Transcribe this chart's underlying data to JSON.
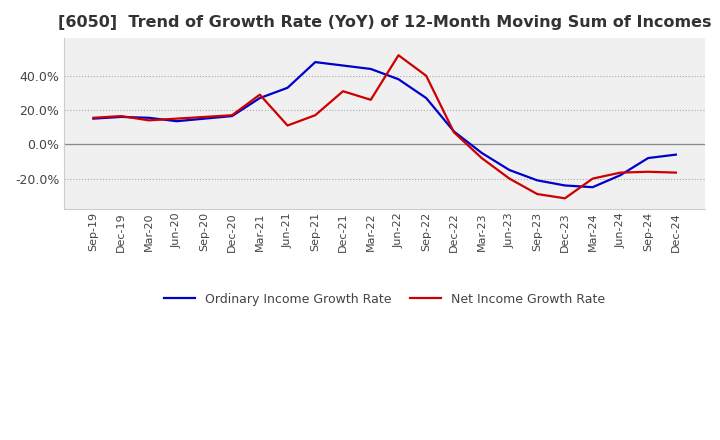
{
  "title": "[6050]  Trend of Growth Rate (YoY) of 12-Month Moving Sum of Incomes",
  "title_fontsize": 11.5,
  "background_color": "#ffffff",
  "plot_bg_color": "#f0f0f0",
  "grid_color": "#aaaaaa",
  "x_labels": [
    "Sep-19",
    "Dec-19",
    "Mar-20",
    "Jun-20",
    "Sep-20",
    "Dec-20",
    "Mar-21",
    "Jun-21",
    "Sep-21",
    "Dec-21",
    "Mar-22",
    "Jun-22",
    "Sep-22",
    "Dec-22",
    "Mar-23",
    "Jun-23",
    "Sep-23",
    "Dec-23",
    "Mar-24",
    "Jun-24",
    "Sep-24",
    "Dec-24"
  ],
  "ordinary_income": [
    15.0,
    16.0,
    15.5,
    13.5,
    15.0,
    16.5,
    27.0,
    33.0,
    48.0,
    46.0,
    44.0,
    38.0,
    27.0,
    7.5,
    -5.0,
    -15.0,
    -21.0,
    -24.0,
    -25.0,
    -18.0,
    -8.0,
    -6.0
  ],
  "net_income": [
    15.5,
    16.5,
    14.0,
    15.0,
    16.0,
    17.0,
    29.0,
    11.0,
    17.0,
    31.0,
    26.0,
    52.0,
    40.0,
    7.0,
    -8.0,
    -20.0,
    -29.0,
    -31.5,
    -20.0,
    -16.5,
    -16.0,
    -16.5
  ],
  "ordinary_color": "#0000cc",
  "net_color": "#cc0000",
  "line_width": 1.6,
  "ylim": [
    -38,
    62
  ],
  "yticks": [
    -20.0,
    0.0,
    20.0,
    40.0
  ],
  "legend_labels": [
    "Ordinary Income Growth Rate",
    "Net Income Growth Rate"
  ]
}
